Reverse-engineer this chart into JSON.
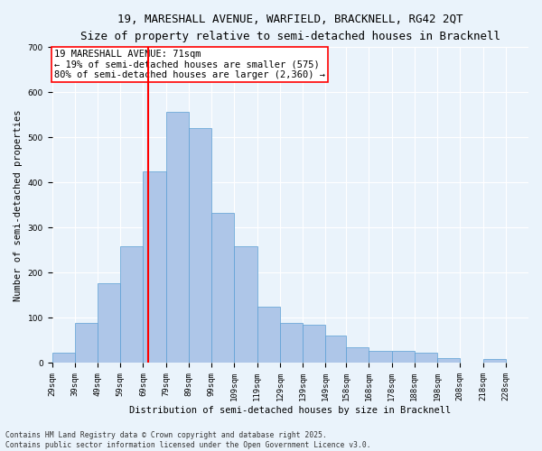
{
  "title_line1": "19, MARESHALL AVENUE, WARFIELD, BRACKNELL, RG42 2QT",
  "title_line2": "Size of property relative to semi-detached houses in Bracknell",
  "xlabel": "Distribution of semi-detached houses by size in Bracknell",
  "ylabel": "Number of semi-detached properties",
  "footer_line1": "Contains HM Land Registry data © Crown copyright and database right 2025.",
  "footer_line2": "Contains public sector information licensed under the Open Government Licence v3.0.",
  "bar_edges": [
    29,
    39,
    49,
    59,
    69,
    79,
    89,
    99,
    109,
    119,
    129,
    139,
    149,
    158,
    168,
    178,
    188,
    198,
    208,
    218,
    228
  ],
  "bar_heights": [
    22,
    88,
    177,
    258,
    425,
    557,
    520,
    333,
    258,
    125,
    88,
    85,
    60,
    35,
    27,
    26,
    22,
    10,
    0,
    9,
    0
  ],
  "bar_color": "#aec6e8",
  "bar_edgecolor": "#5a9fd4",
  "property_size": 71,
  "property_line_color": "red",
  "annotation_text": "19 MARESHALL AVENUE: 71sqm\n← 19% of semi-detached houses are smaller (575)\n80% of semi-detached houses are larger (2,360) →",
  "annotation_box_edgecolor": "red",
  "annotation_fontsize": 7.5,
  "title_fontsize1": 9,
  "title_fontsize2": 8,
  "xlabel_fontsize": 7.5,
  "ylabel_fontsize": 7.5,
  "tick_fontsize": 6.5,
  "footer_fontsize": 5.8,
  "ylim": [
    0,
    700
  ],
  "background_color": "#eaf3fb",
  "plot_background": "#eaf3fb",
  "grid_color": "white",
  "tick_labels": [
    "29sqm",
    "39sqm",
    "49sqm",
    "59sqm",
    "69sqm",
    "79sqm",
    "89sqm",
    "99sqm",
    "109sqm",
    "119sqm",
    "129sqm",
    "139sqm",
    "149sqm",
    "158sqm",
    "168sqm",
    "178sqm",
    "188sqm",
    "198sqm",
    "208sqm",
    "218sqm",
    "228sqm"
  ]
}
